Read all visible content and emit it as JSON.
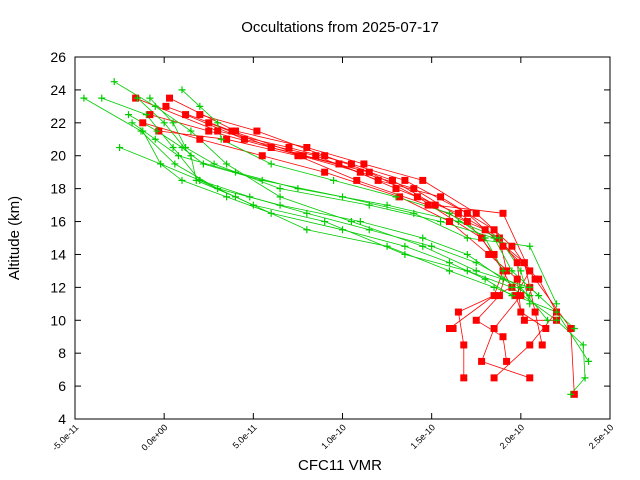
{
  "chart_data": {
    "type": "line",
    "title": "Occultations from 2025-07-17",
    "xlabel": "CFC11 VMR",
    "ylabel": "Altitude (km)",
    "xlim": [
      -5e-11,
      2.5e-10
    ],
    "ylim": [
      4,
      26
    ],
    "xticks": [
      -5e-11,
      0,
      5e-11,
      1e-10,
      1.5e-10,
      2e-10,
      2.5e-10
    ],
    "xtick_labels": [
      "-5.0e-11",
      "0.0e+00",
      "5.0e-11",
      "1.0e-10",
      "1.5e-10",
      "2.0e-10",
      "2.5e-10"
    ],
    "yticks": [
      4,
      6,
      8,
      10,
      12,
      14,
      16,
      18,
      20,
      22,
      24,
      26
    ],
    "ytick_labels": [
      "4",
      "6",
      "8",
      "10",
      "12",
      "14",
      "16",
      "18",
      "20",
      "22",
      "24",
      "26"
    ],
    "grid": false,
    "legend": "none",
    "series": [
      {
        "color": "#ff0000",
        "marker": "square",
        "profiles": [
          [
            [
              -1.6e-11,
              23.5
            ],
            [
              3e-11,
              21.5
            ],
            [
              7e-11,
              20.5
            ],
            [
              1.05e-10,
              19.5
            ],
            [
              1.35e-10,
              18.5
            ],
            [
              1.7e-10,
              16.5
            ],
            [
              1.9e-10,
              14.5
            ],
            [
              2.1e-10,
              12.5
            ],
            [
              2.2e-10,
              10.5
            ],
            [
              2.05e-10,
              8.5
            ],
            [
              1.85e-10,
              6.5
            ]
          ],
          [
            [
              3e-12,
              23.5
            ],
            [
              4e-11,
              21.5
            ],
            [
              8e-11,
              20.5
            ],
            [
              1.12e-10,
              19.5
            ],
            [
              1.45e-10,
              18.5
            ],
            [
              1.75e-10,
              16.5
            ],
            [
              1.95e-10,
              14.5
            ],
            [
              2.08e-10,
              12.5
            ],
            [
              2.28e-10,
              9.5
            ],
            [
              2.3e-10,
              5.5
            ]
          ],
          [
            [
              -8e-12,
              22.5
            ],
            [
              2.5e-11,
              21.5
            ],
            [
              6e-11,
              20.5
            ],
            [
              1.1e-10,
              19.0
            ],
            [
              1.4e-10,
              18.0
            ],
            [
              1.7e-10,
              16.0
            ],
            [
              1.85e-10,
              14.0
            ],
            [
              1.95e-10,
              12.0
            ],
            [
              1.65e-10,
              10.5
            ],
            [
              1.68e-10,
              8.5
            ],
            [
              1.68e-10,
              6.5
            ]
          ],
          [
            [
              1.2e-11,
              22.5
            ],
            [
              4.5e-11,
              21.0
            ],
            [
              8.5e-11,
              20.0
            ],
            [
              1.2e-10,
              18.5
            ],
            [
              1.55e-10,
              17.5
            ],
            [
              1.85e-10,
              15.5
            ],
            [
              1.98e-10,
              13.5
            ],
            [
              2e-10,
              11.5
            ],
            [
              1.85e-10,
              9.5
            ],
            [
              1.78e-10,
              7.5
            ],
            [
              2.05e-10,
              6.5
            ]
          ],
          [
            [
              2.5e-11,
              22.0
            ],
            [
              6e-11,
              20.5
            ],
            [
              9.8e-11,
              19.5
            ],
            [
              1.3e-10,
              18.0
            ],
            [
              1.65e-10,
              16.5
            ],
            [
              1.88e-10,
              15.0
            ],
            [
              1.92e-10,
              13.0
            ],
            [
              1.88e-10,
              11.5
            ],
            [
              1.75e-10,
              10.0
            ],
            [
              1.9e-10,
              9.0
            ],
            [
              1.92e-10,
              7.5
            ]
          ],
          [
            [
              -3e-12,
              21.5
            ],
            [
              3.5e-11,
              21.0
            ],
            [
              7.5e-11,
              20.0
            ],
            [
              1.08e-10,
              18.5
            ],
            [
              1.48e-10,
              17.0
            ],
            [
              1.8e-10,
              15.5
            ],
            [
              2.02e-10,
              13.5
            ],
            [
              2.05e-10,
              12.0
            ],
            [
              2.08e-10,
              10.5
            ],
            [
              2.12e-10,
              8.5
            ]
          ],
          [
            [
              -1.2e-11,
              22.0
            ],
            [
              2e-11,
              21.0
            ],
            [
              5.5e-11,
              20.0
            ],
            [
              9e-11,
              19.0
            ],
            [
              1.32e-10,
              17.5
            ],
            [
              1.6e-10,
              16.0
            ],
            [
              1.82e-10,
              14.0
            ],
            [
              1.98e-10,
              12.5
            ],
            [
              2e-10,
              10.5
            ],
            [
              2.14e-10,
              9.5
            ]
          ],
          [
            [
              1e-12,
              23.0
            ],
            [
              3.8e-11,
              21.5
            ],
            [
              7.8e-11,
              20.0
            ],
            [
              1.15e-10,
              19.0
            ],
            [
              1.42e-10,
              17.5
            ],
            [
              1.78e-10,
              15.0
            ],
            [
              1.9e-10,
              13.0
            ],
            [
              1.85e-10,
              11.5
            ],
            [
              1.6e-10,
              9.5
            ],
            [
              1.62e-10,
              9.5
            ]
          ],
          [
            [
              2e-11,
              22.5
            ],
            [
              5.2e-11,
              21.5
            ],
            [
              9e-11,
              20.0
            ],
            [
              1.28e-10,
              18.5
            ],
            [
              1.52e-10,
              17.0
            ],
            [
              1.9e-10,
              16.5
            ],
            [
              2.05e-10,
              13.0
            ],
            [
              1.97e-10,
              11.5
            ],
            [
              2.02e-10,
              10.0
            ],
            [
              2.2e-10,
              10.0
            ]
          ]
        ]
      },
      {
        "color": "#00cc00",
        "marker": "plus",
        "profiles": [
          [
            [
              -2.8e-11,
              24.5
            ],
            [
              -5e-12,
              23.0
            ],
            [
              1.5e-11,
              21.5
            ],
            [
              3.5e-11,
              19.5
            ],
            [
              6.5e-11,
              17.5
            ],
            [
              1.05e-10,
              16.0
            ],
            [
              1.45e-10,
              14.5
            ],
            [
              1.75e-10,
              13.0
            ],
            [
              2.05e-10,
              12.0
            ],
            [
              2.3e-10,
              9.5
            ]
          ],
          [
            [
              -3.5e-11,
              23.5
            ],
            [
              -1e-11,
              22.5
            ],
            [
              5e-12,
              20.5
            ],
            [
              2e-11,
              18.5
            ],
            [
              5e-11,
              17.0
            ],
            [
              9e-11,
              16.0
            ],
            [
              1.35e-10,
              14.0
            ],
            [
              1.7e-10,
              13.0
            ],
            [
              1.95e-10,
              12.0
            ],
            [
              2.2e-10,
              10.0
            ],
            [
              2.35e-10,
              8.5
            ],
            [
              2.36e-10,
              6.5
            ],
            [
              2.28e-10,
              5.5
            ]
          ],
          [
            [
              -1.5e-11,
              23.5
            ],
            [
              0,
              22.0
            ],
            [
              1.5e-11,
              20.0
            ],
            [
              1.8e-11,
              18.5
            ],
            [
              4e-11,
              17.5
            ],
            [
              8e-11,
              15.5
            ],
            [
              1.25e-10,
              14.5
            ],
            [
              1.6e-10,
              13.0
            ],
            [
              1.85e-10,
              12.0
            ],
            [
              2.2e-10,
              10.5
            ],
            [
              2.38e-10,
              7.5
            ]
          ],
          [
            [
              -2e-11,
              22.5
            ],
            [
              -4e-12,
              21.5
            ],
            [
              1e-11,
              20.5
            ],
            [
              2.2e-11,
              19.5
            ],
            [
              5.5e-11,
              18.5
            ],
            [
              1e-10,
              17.5
            ],
            [
              1.4e-10,
              16.5
            ],
            [
              1.7e-10,
              15.0
            ],
            [
              2.05e-10,
              14.5
            ],
            [
              2.2e-10,
              11.0
            ]
          ],
          [
            [
              -8e-12,
              23.5
            ],
            [
              5e-12,
              22.0
            ],
            [
              1.2e-11,
              20.5
            ],
            [
              2.8e-11,
              19.5
            ],
            [
              6.5e-11,
              18.0
            ],
            [
              1.15e-10,
              17.0
            ],
            [
              1.55e-10,
              16.0
            ],
            [
              1.85e-10,
              15.0
            ],
            [
              1.95e-10,
              13.0
            ],
            [
              2.1e-10,
              11.5
            ]
          ],
          [
            [
              -1.2e-11,
              21.5
            ],
            [
              -2e-12,
              19.5
            ],
            [
              1e-11,
              18.5
            ],
            [
              3.5e-11,
              17.5
            ],
            [
              6e-11,
              16.5
            ],
            [
              1e-10,
              15.5
            ],
            [
              1.35e-10,
              14.5
            ],
            [
              1.6e-10,
              13.5
            ],
            [
              1.8e-10,
              12.5
            ],
            [
              1.95e-10,
              11.5
            ]
          ],
          [
            [
              -2.5e-11,
              20.5
            ],
            [
              -2e-12,
              19.5
            ],
            [
              2e-11,
              18.5
            ],
            [
              4.8e-11,
              17.5
            ],
            [
              8e-11,
              16.5
            ],
            [
              1.15e-10,
              15.5
            ],
            [
              1.5e-10,
              14.5
            ],
            [
              1.75e-10,
              13.5
            ],
            [
              2e-10,
              12.0
            ],
            [
              2.15e-10,
              10.0
            ]
          ],
          [
            [
              -1.8e-11,
              22.0
            ],
            [
              -5e-12,
              21.0
            ],
            [
              8e-12,
              20.0
            ],
            [
              4e-11,
              19.0
            ],
            [
              7.5e-11,
              18.0
            ],
            [
              1.25e-10,
              17.0
            ],
            [
              1.65e-10,
              16.0
            ],
            [
              1.88e-10,
              15.0
            ],
            [
              2e-10,
              13.0
            ],
            [
              2.05e-10,
              11.0
            ]
          ],
          [
            [
              -4.5e-11,
              23.5
            ],
            [
              -1.3e-11,
              21.5
            ],
            [
              6e-12,
              19.5
            ],
            [
              3e-11,
              18.0
            ],
            [
              6.5e-11,
              17.0
            ],
            [
              1.1e-10,
              16.0
            ],
            [
              1.45e-10,
              15.0
            ],
            [
              1.7e-10,
              14.0
            ],
            [
              1.9e-10,
              12.5
            ],
            [
              2.05e-10,
              11.5
            ]
          ],
          [
            [
              1e-11,
              24.0
            ],
            [
              2e-11,
              23.0
            ],
            [
              3e-11,
              22.0
            ],
            [
              3.2e-11,
              21.0
            ],
            [
              6e-11,
              19.5
            ],
            [
              9.5e-11,
              18.5
            ],
            [
              1.3e-10,
              17.5
            ],
            [
              1.6e-10,
              16.5
            ],
            [
              1.8e-10,
              15.0
            ],
            [
              1.9e-10,
              13.0
            ]
          ]
        ]
      }
    ]
  }
}
